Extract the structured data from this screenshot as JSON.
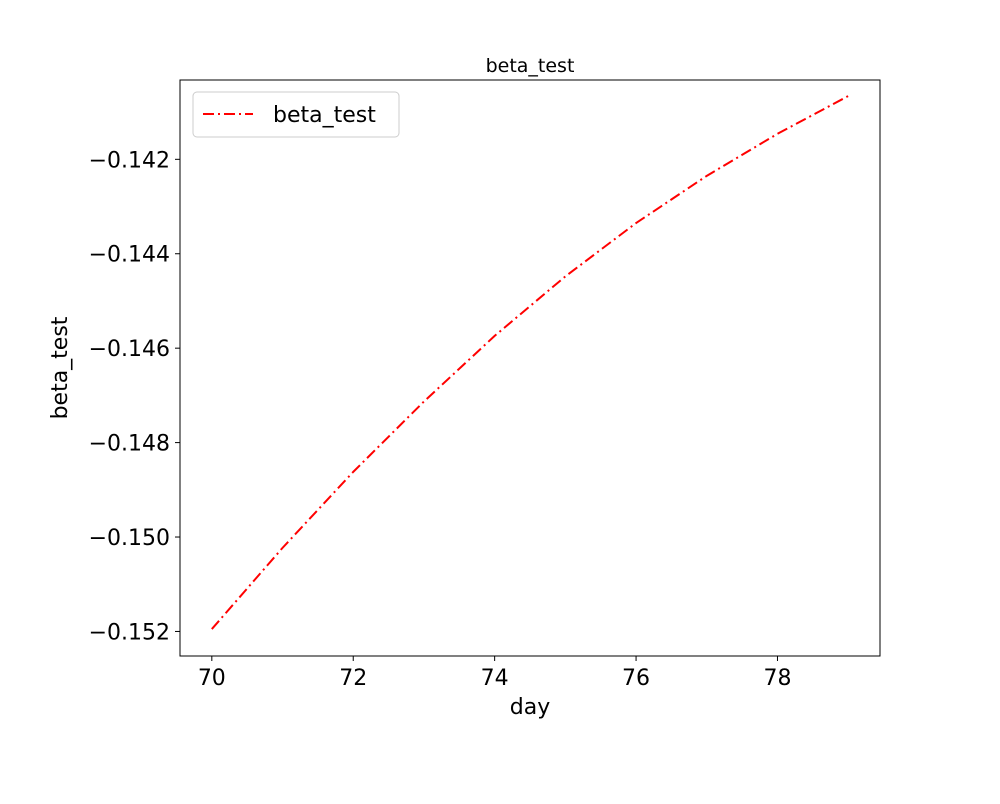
{
  "chart_data": {
    "type": "line",
    "title": "beta_test",
    "xlabel": "day",
    "ylabel": "beta_test",
    "xlim": [
      69.55,
      79.45
    ],
    "ylim": [
      -0.15252,
      -0.14032
    ],
    "xticks": [
      70,
      72,
      74,
      76,
      78
    ],
    "xtick_labels": [
      "70",
      "72",
      "74",
      "76",
      "78"
    ],
    "yticks": [
      -0.152,
      -0.15,
      -0.148,
      -0.146,
      -0.144,
      -0.142
    ],
    "ytick_labels": [
      "−0.152",
      "−0.150",
      "−0.148",
      "−0.146",
      "−0.144",
      "−0.142"
    ],
    "grid": false,
    "legend": {
      "position": "upper-left"
    },
    "x": [
      70,
      71,
      72,
      73,
      74,
      75,
      76,
      77,
      78,
      79
    ],
    "series": [
      {
        "name": "beta_test",
        "color": "#ff0000",
        "line_style": "dash-dot",
        "values": [
          -0.15195,
          -0.15023,
          -0.14862,
          -0.14713,
          -0.14574,
          -0.14448,
          -0.14335,
          -0.14235,
          -0.14146,
          -0.14066
        ]
      }
    ]
  }
}
